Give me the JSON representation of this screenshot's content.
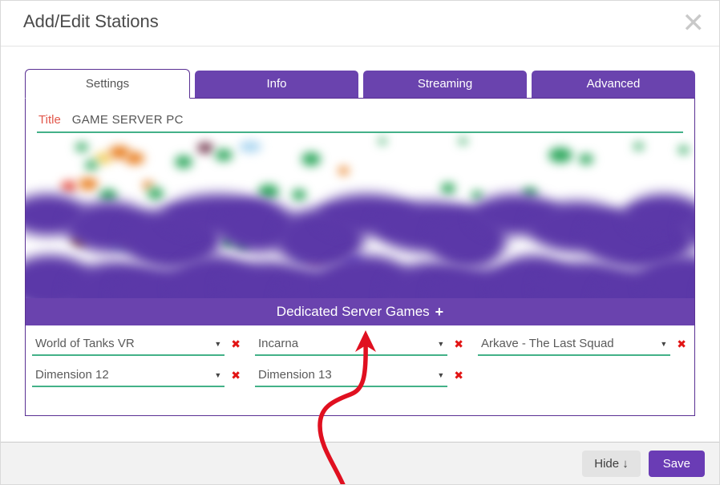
{
  "modal": {
    "title": "Add/Edit Stations",
    "close_icon": "✕"
  },
  "tabs": [
    {
      "label": "Settings",
      "active": true
    },
    {
      "label": "Info",
      "active": false
    },
    {
      "label": "Streaming",
      "active": false
    },
    {
      "label": "Advanced",
      "active": false
    }
  ],
  "form": {
    "title_label": "Title",
    "title_value": "GAME SERVER PC"
  },
  "games_section": {
    "header": "Dedicated Server Games",
    "add_icon": "+",
    "dropdown_icon": "▼",
    "remove_icon": "✖",
    "games": [
      "World of Tanks VR",
      "Incarna",
      "Arkave - The Last Squad",
      "Dimension 12",
      "Dimension 13"
    ]
  },
  "footer": {
    "hide_label": "Hide ↓",
    "save_label": "Save"
  },
  "colors": {
    "accent_purple": "#6a43ae",
    "box_border_purple": "#5a3093",
    "underline_green": "#43b188",
    "title_label_red": "#e2574b",
    "remove_red": "#e21414",
    "annotation_arrow_red": "#e01020"
  }
}
